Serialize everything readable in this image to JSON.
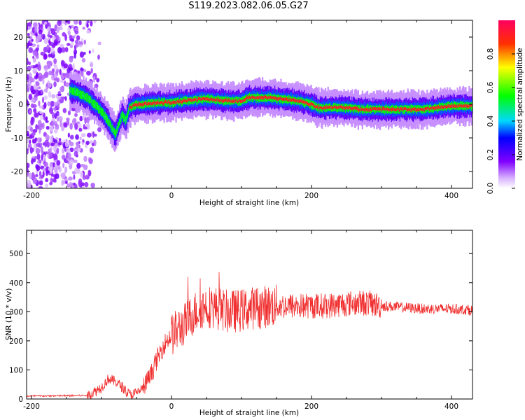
{
  "title": "S119.2023.082.06.05.G27",
  "chart_data": [
    {
      "type": "heatmap",
      "xlabel": "Height of straight line (km)",
      "ylabel": "Frequency (Hz)",
      "xlim": [
        -207,
        430
      ],
      "ylim": [
        -25,
        25
      ],
      "xticks": [
        -200,
        0,
        200,
        400
      ],
      "yticks": [
        -20,
        -10,
        0,
        10,
        20
      ],
      "colorbar": {
        "label": "Normalized spectral amplitude",
        "range": [
          0,
          1
        ],
        "ticks": [
          "0.0",
          "0.2",
          "0.4",
          "0.6",
          "0.8"
        ]
      },
      "ridge": {
        "x": [
          -140,
          -130,
          -120,
          -110,
          -100,
          -90,
          -80,
          -75,
          -70,
          -65,
          -60,
          -50,
          -40,
          -20,
          0,
          20,
          40,
          60,
          80,
          100,
          110,
          120,
          140,
          160,
          180,
          200,
          210,
          230,
          250,
          270,
          300,
          330,
          360,
          400,
          430
        ],
        "y": [
          4,
          3,
          2,
          0,
          -2,
          -5,
          -9,
          -6,
          -3,
          -5,
          -1,
          0,
          0,
          0.5,
          0.5,
          1,
          1.5,
          1.5,
          1,
          1,
          2,
          2,
          2,
          1.5,
          1,
          0,
          -1,
          -1,
          -1,
          -1.5,
          -1.5,
          -1.5,
          -1.5,
          -0.5,
          -0.5
        ]
      }
    },
    {
      "type": "line",
      "xlabel": "Height of straight line (km)",
      "ylabel": "SNR (10 * v/v)",
      "xlim": [
        -207,
        430
      ],
      "ylim": [
        0,
        580
      ],
      "xticks": [
        -200,
        0,
        200,
        400
      ],
      "yticks": [
        0,
        100,
        200,
        300,
        400,
        500
      ],
      "color": "#f03030",
      "envelope": {
        "x": [
          -207,
          -120,
          -110,
          -100,
          -90,
          -80,
          -70,
          -60,
          -50,
          -40,
          -30,
          -20,
          -10,
          0,
          10,
          20,
          30,
          40,
          50,
          60,
          70,
          80,
          100,
          120,
          150,
          180,
          200,
          220,
          240,
          260,
          280,
          300,
          330,
          360,
          400,
          430
        ],
        "y": [
          10,
          12,
          25,
          40,
          70,
          60,
          40,
          15,
          20,
          40,
          80,
          140,
          190,
          220,
          240,
          260,
          290,
          310,
          320,
          315,
          310,
          300,
          305,
          315,
          320,
          320,
          320,
          320,
          325,
          330,
          330,
          320,
          315,
          310,
          310,
          305
        ]
      }
    }
  ]
}
